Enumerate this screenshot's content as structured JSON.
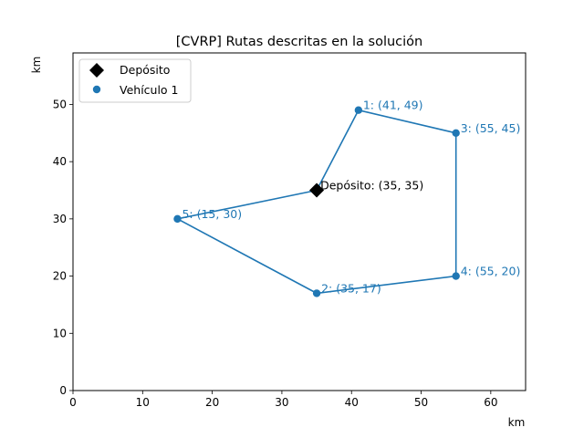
{
  "chart_data": {
    "type": "scatter",
    "title": "[CVRP] Rutas descritas en la solución",
    "xlabel": "km",
    "ylabel": "km",
    "xlim": [
      0,
      65
    ],
    "ylim": [
      0,
      59
    ],
    "xticks": [
      0,
      10,
      20,
      30,
      40,
      50,
      60
    ],
    "yticks": [
      0,
      10,
      20,
      30,
      40,
      50
    ],
    "grid": false,
    "legend_position": "top-left",
    "depot": {
      "name": "Depósito",
      "x": 35,
      "y": 35,
      "label": "Depósito: (35, 35)",
      "color": "#000000",
      "marker": "diamond"
    },
    "series": [
      {
        "name": "Vehículo 1",
        "color": "#1f77b4",
        "route_x": [
          35,
          41,
          55,
          55,
          35,
          15,
          35
        ],
        "route_y": [
          35,
          49,
          45,
          20,
          17,
          30,
          35
        ],
        "points": [
          {
            "x": 41,
            "y": 49,
            "label": "1: (41, 49)"
          },
          {
            "x": 35,
            "y": 17,
            "label": "2: (35, 17)"
          },
          {
            "x": 55,
            "y": 45,
            "label": "3: (55, 45)"
          },
          {
            "x": 55,
            "y": 20,
            "label": "4: (55, 20)"
          },
          {
            "x": 15,
            "y": 30,
            "label": "5: (15, 30)"
          }
        ]
      }
    ],
    "legend": [
      "Depósito",
      "Vehículo 1"
    ]
  }
}
